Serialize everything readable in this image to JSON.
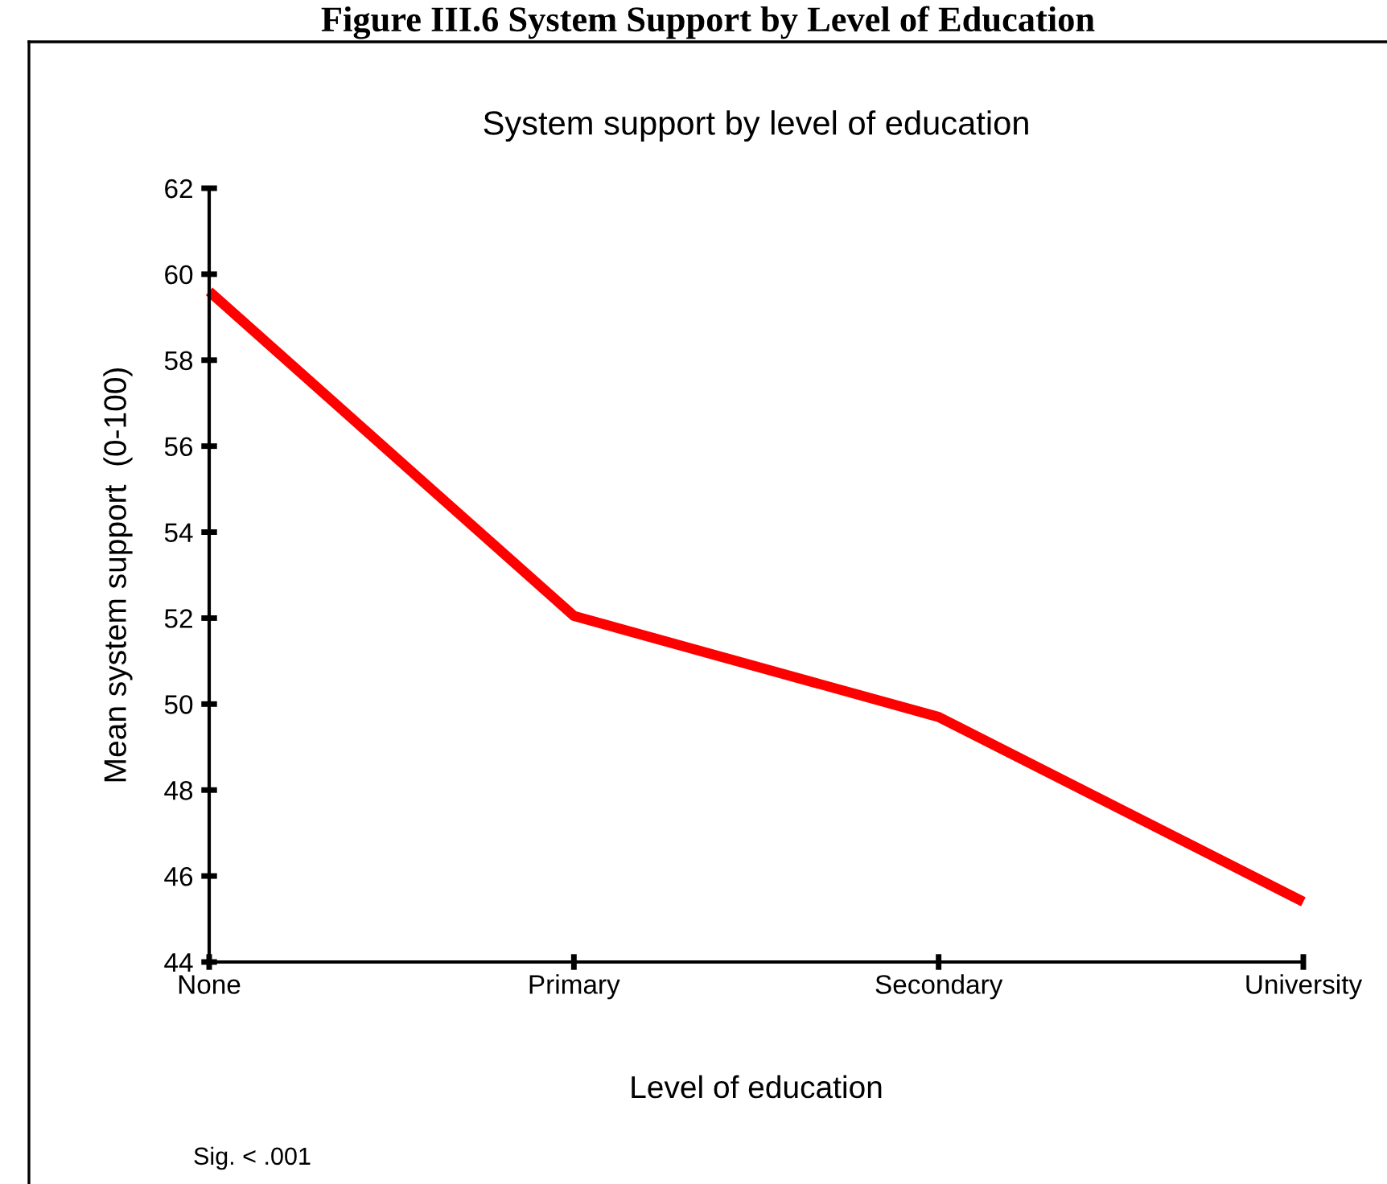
{
  "chart_data": {
    "type": "line",
    "title": "Figure III.6 System Support by Level of Education",
    "subtitle": "System support by level of education",
    "xlabel": "Level of education",
    "ylabel": "Mean system support  (0-100)",
    "categories": [
      "None",
      "Primary",
      "Secondary",
      "University"
    ],
    "series": [
      {
        "color": "#ff0000",
        "values": [
          59.6,
          52.05,
          49.7,
          45.4
        ]
      }
    ],
    "ylim": [
      44,
      62
    ],
    "yticks": [
      44,
      46,
      48,
      50,
      52,
      54,
      56,
      58,
      60,
      62
    ],
    "grid": false,
    "legend": false,
    "marker": "none",
    "line_style": "solid",
    "annotations": [
      "Sig. < .001"
    ]
  }
}
